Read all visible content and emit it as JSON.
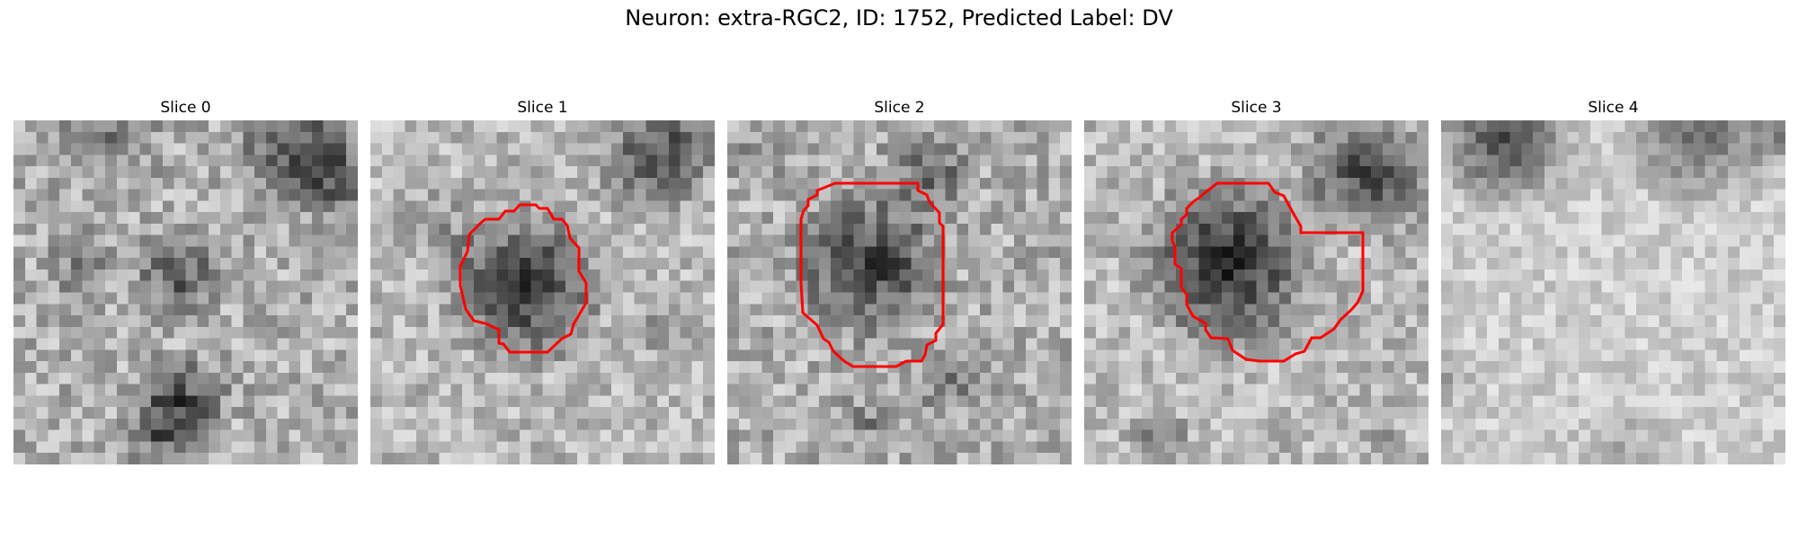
{
  "figure": {
    "title": "Neuron: extra-RGC2, ID: 1752, Predicted Label: DV"
  },
  "outline_color": "#ff0000",
  "slices": [
    {
      "label": "Slice 0",
      "has_outline": false
    },
    {
      "label": "Slice 1",
      "has_outline": true
    },
    {
      "label": "Slice 2",
      "has_outline": true
    },
    {
      "label": "Slice 3",
      "has_outline": true
    },
    {
      "label": "Slice 4",
      "has_outline": false
    }
  ]
}
